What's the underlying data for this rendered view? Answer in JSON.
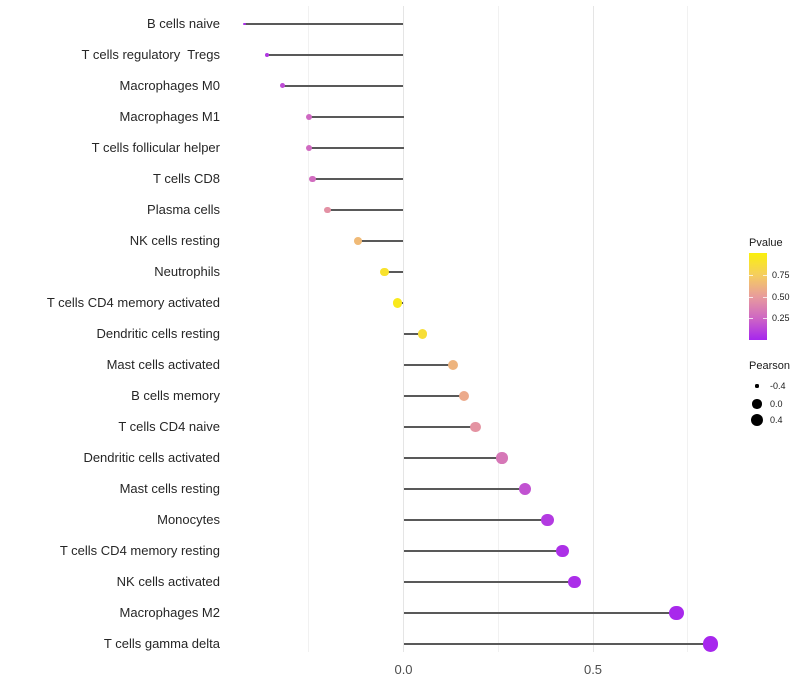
{
  "chart_data": {
    "type": "lollipop",
    "title": "",
    "orientation": "horizontal",
    "baseline": 0,
    "categories": [
      "B cells naive",
      "T cells regulatory  Tregs",
      "Macrophages M0",
      "Macrophages M1",
      "T cells follicular helper",
      "T cells CD8",
      "Plasma cells",
      "NK cells resting",
      "Neutrophils",
      "T cells CD4 memory activated",
      "Dendritic cells resting",
      "Mast cells activated",
      "B cells memory",
      "T cells CD4 naive",
      "Dendritic cells activated",
      "Mast cells resting",
      "Monocytes",
      "T cells CD4 memory resting",
      "NK cells activated",
      "Macrophages M2",
      "T cells gamma delta"
    ],
    "series": [
      {
        "name": "Pearson",
        "values": [
          -0.42,
          -0.36,
          -0.32,
          -0.25,
          -0.25,
          -0.24,
          -0.2,
          -0.12,
          -0.05,
          -0.015,
          0.05,
          0.13,
          0.16,
          0.19,
          0.26,
          0.32,
          0.38,
          0.42,
          0.45,
          0.72,
          0.81
        ]
      },
      {
        "name": "Pvalue",
        "values": [
          0.03,
          0.07,
          0.15,
          0.26,
          0.27,
          0.28,
          0.45,
          0.65,
          0.9,
          0.95,
          0.87,
          0.62,
          0.57,
          0.46,
          0.33,
          0.17,
          0.08,
          0.04,
          0.03,
          0.01,
          0.005
        ]
      }
    ],
    "x_axis": {
      "label": "",
      "ticks": [
        {
          "value": 0.0,
          "label": "0.0"
        },
        {
          "value": 0.5,
          "label": "0.5"
        }
      ],
      "gridlines_major": [
        0.0,
        0.5
      ],
      "gridlines_minor": [
        -0.25,
        0.25,
        0.75
      ],
      "range": [
        -0.48,
        0.87
      ]
    },
    "size_domain": [
      -0.42,
      0.81
    ],
    "legend": {
      "pvalue": {
        "title": "Pvalue",
        "range": [
          0,
          1
        ],
        "ticks": [
          {
            "value": 0.75,
            "label": "0.75"
          },
          {
            "value": 0.5,
            "label": "0.50"
          },
          {
            "value": 0.25,
            "label": "0.25"
          }
        ],
        "gradient_stops": [
          {
            "t": 0.0,
            "color": "#a626ee"
          },
          {
            "t": 0.25,
            "color": "#ce66c4"
          },
          {
            "t": 0.5,
            "color": "#e89c9c"
          },
          {
            "t": 0.75,
            "color": "#f5ce5e"
          },
          {
            "t": 1.0,
            "color": "#faf00c"
          }
        ]
      },
      "pearson": {
        "title": "Pearson",
        "items": [
          {
            "value": -0.4,
            "label": "-0.4"
          },
          {
            "value": 0.0,
            "label": "0.0"
          },
          {
            "value": 0.4,
            "label": "0.4"
          }
        ]
      }
    }
  },
  "colors": {
    "background": "#ffffff",
    "stick": "#595959",
    "grid_major": "#e5e5e5",
    "grid_minor": "#f1f1f1",
    "axis_text": "#4d4d4d",
    "category_text": "#262626"
  }
}
